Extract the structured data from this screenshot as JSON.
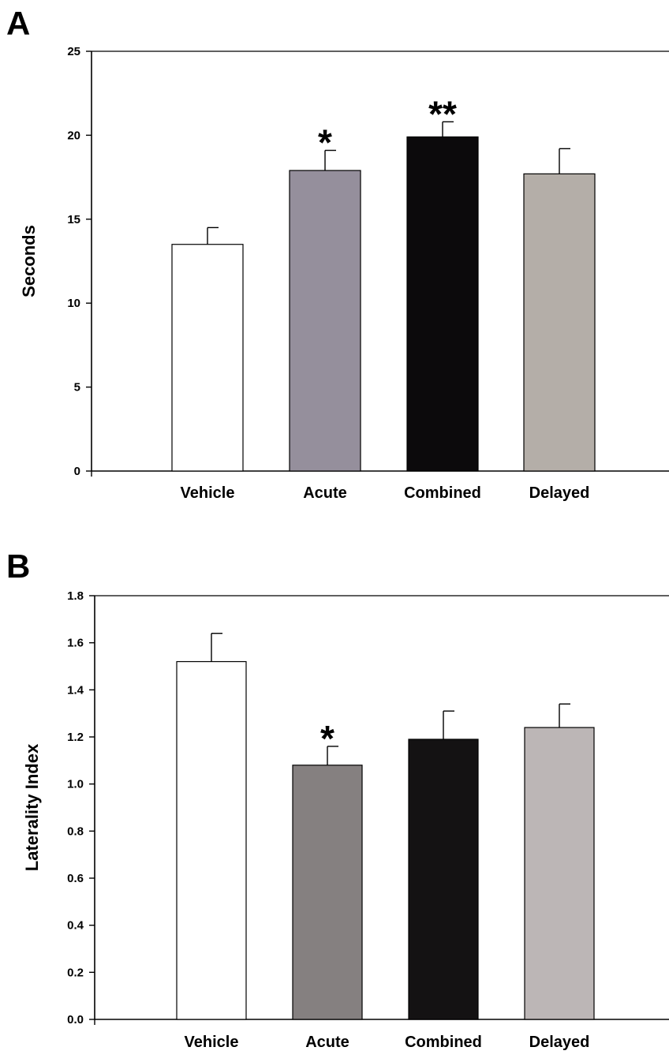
{
  "chart_data": [
    {
      "panel": "A",
      "type": "bar",
      "categories": [
        "Vehicle",
        "Acute",
        "Combined",
        "Delayed"
      ],
      "values": [
        13.5,
        17.9,
        19.9,
        17.7
      ],
      "errors": [
        1.0,
        1.2,
        0.9,
        1.5
      ],
      "significance": [
        "",
        "*",
        "**",
        ""
      ],
      "colors": [
        "#ffffff",
        "#958f9c",
        "#0c0a0c",
        "#b4aea8"
      ],
      "ylabel": "Seconds",
      "xlabel": "",
      "ylim": [
        0,
        25
      ],
      "yticks": [
        0,
        5,
        10,
        15,
        20,
        25
      ],
      "ytick_labels": [
        "0",
        "5",
        "10",
        "15",
        "20",
        "25"
      ],
      "grid": false
    },
    {
      "panel": "B",
      "type": "bar",
      "categories": [
        "Vehicle",
        "Acute",
        "Combined",
        "Delayed"
      ],
      "values": [
        1.52,
        1.08,
        1.19,
        1.24
      ],
      "errors": [
        0.12,
        0.08,
        0.12,
        0.1
      ],
      "significance": [
        "",
        "*",
        "",
        ""
      ],
      "colors": [
        "#ffffff",
        "#858080",
        "#141213",
        "#bcb6b6"
      ],
      "ylabel": "Laterality Index",
      "xlabel": "",
      "ylim": [
        0,
        1.8
      ],
      "yticks": [
        0,
        0.2,
        0.4,
        0.6,
        0.8,
        1.0,
        1.2,
        1.4,
        1.6,
        1.8
      ],
      "ytick_labels": [
        "0.0",
        "0.2",
        "0.4",
        "0.6",
        "0.8",
        "1.0",
        "1.2",
        "1.4",
        "1.6",
        "1.8"
      ],
      "grid": false
    }
  ]
}
